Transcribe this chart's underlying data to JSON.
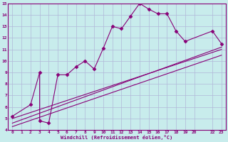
{
  "xlabel": "Windchill (Refroidissement éolien,°C)",
  "bg_color": "#c8ecec",
  "grid_color": "#b0b8d8",
  "line_color": "#880077",
  "xlim": [
    -0.5,
    23.5
  ],
  "ylim": [
    4,
    15
  ],
  "xticks": [
    0,
    1,
    2,
    3,
    4,
    5,
    6,
    7,
    8,
    9,
    10,
    11,
    12,
    13,
    14,
    15,
    16,
    17,
    18,
    19,
    20,
    22,
    23
  ],
  "yticks": [
    4,
    5,
    6,
    7,
    8,
    9,
    10,
    11,
    12,
    13,
    14,
    15
  ],
  "curve_x": [
    0,
    2,
    3,
    3,
    4,
    5,
    6,
    7,
    8,
    9,
    10,
    11,
    12,
    13,
    14,
    15,
    16,
    17,
    18,
    19,
    22,
    23
  ],
  "curve_y": [
    5.2,
    6.2,
    9.0,
    4.8,
    4.6,
    8.8,
    8.8,
    9.5,
    10.0,
    9.3,
    11.1,
    13.0,
    12.8,
    13.9,
    15.0,
    14.5,
    14.1,
    14.1,
    12.6,
    11.7,
    12.6,
    11.5
  ],
  "line1_x": [
    0,
    23
  ],
  "line1_y": [
    5.0,
    11.0
  ],
  "line2_x": [
    0,
    23
  ],
  "line2_y": [
    4.6,
    11.2
  ],
  "line3_x": [
    0,
    23
  ],
  "line3_y": [
    4.3,
    10.5
  ]
}
